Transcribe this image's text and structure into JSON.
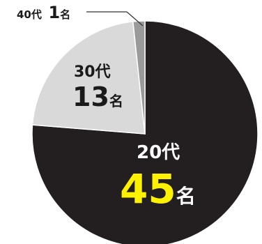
{
  "chart_data": {
    "type": "pie",
    "unit": "名",
    "slices": [
      {
        "category": "20代",
        "value": 45,
        "color": "#231f20"
      },
      {
        "category": "30代",
        "value": 13,
        "color": "#d9d9d9"
      },
      {
        "category": "40代",
        "value": 1,
        "color": "#9a9a9a"
      }
    ],
    "value_color": "#fff200",
    "label_dark": "#1a1a1a",
    "label_light": "#ffffff"
  }
}
